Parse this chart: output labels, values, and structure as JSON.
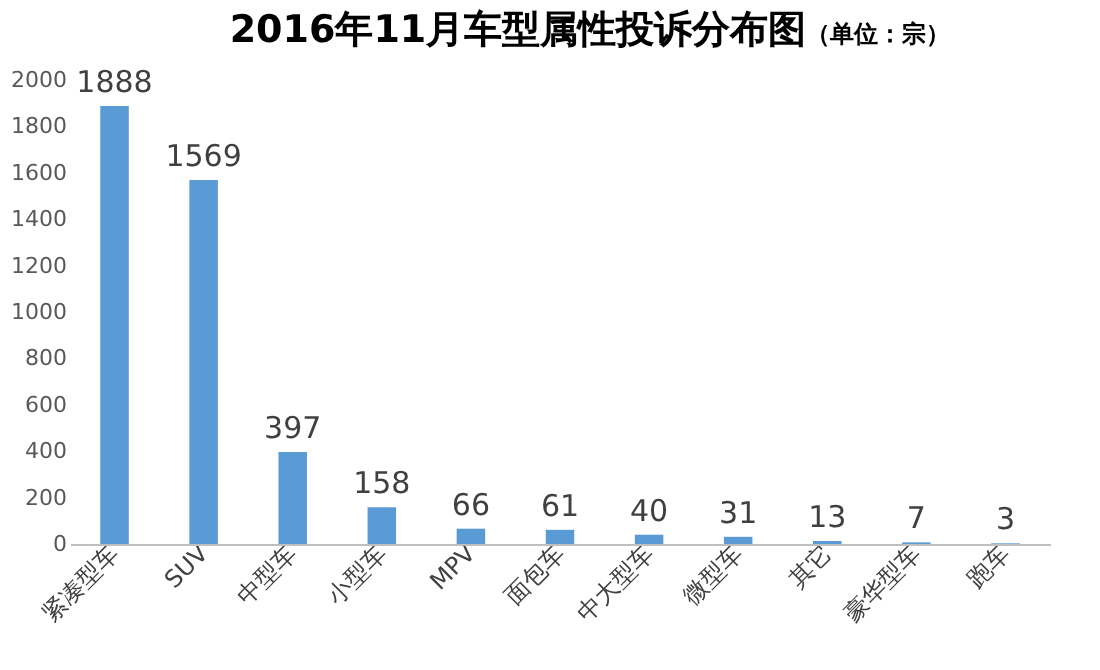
{
  "chart_data": {
    "type": "bar",
    "title": "2016年11月车型属性投诉分布图",
    "subtitle": "（单位：宗）",
    "categories": [
      "紧凑型车",
      "SUV",
      "中型车",
      "小型车",
      "MPV",
      "面包车",
      "中大型车",
      "微型车",
      "其它",
      "豪华型车",
      "跑车"
    ],
    "values": [
      1888,
      1569,
      397,
      158,
      66,
      61,
      40,
      31,
      13,
      7,
      3
    ],
    "color": "#5b9bd5",
    "ylim": [
      0,
      2000
    ],
    "yticks": [
      0,
      200,
      400,
      600,
      800,
      1000,
      1200,
      1400,
      1600,
      1800,
      2000
    ],
    "grid": false,
    "data_labels": true,
    "legend": false
  }
}
